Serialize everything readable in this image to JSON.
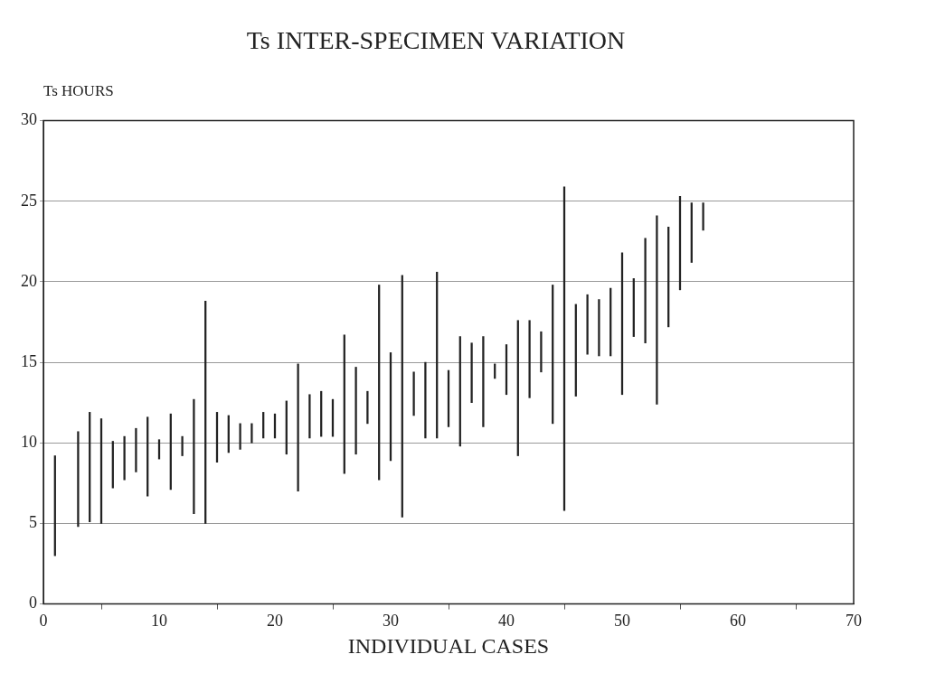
{
  "chart_data": {
    "type": "bar",
    "title": "Ts INTER-SPECIMEN VARIATION",
    "xlabel": "INDIVIDUAL CASES",
    "ylabel": "Ts HOURS",
    "x": [
      1,
      3,
      4,
      5,
      6,
      7,
      8,
      9,
      10,
      11,
      12,
      13,
      14,
      15,
      16,
      17,
      18,
      19,
      20,
      21,
      22,
      23,
      24,
      25,
      26,
      27,
      28,
      29,
      30,
      31,
      32,
      33,
      34,
      35,
      36,
      37,
      38,
      39,
      40,
      41,
      42,
      43,
      44,
      45,
      46,
      47,
      48,
      49,
      50,
      51,
      52,
      53,
      54,
      55,
      56,
      57
    ],
    "base": [
      3.0,
      4.8,
      5.1,
      5.0,
      7.2,
      7.7,
      8.2,
      6.7,
      9.0,
      7.1,
      9.2,
      5.6,
      5.0,
      8.8,
      9.4,
      9.6,
      10.0,
      10.3,
      10.3,
      9.3,
      7.0,
      10.3,
      10.4,
      10.4,
      8.1,
      9.3,
      11.2,
      7.7,
      8.9,
      5.4,
      11.7,
      10.3,
      10.3,
      11.0,
      9.8,
      12.5,
      11.0,
      14.0,
      13.0,
      9.2,
      12.8,
      14.4,
      11.2,
      5.8,
      12.9,
      15.5,
      15.4,
      15.4,
      13.0,
      16.6,
      16.2,
      12.4,
      17.2,
      19.5,
      21.2,
      23.2
    ],
    "values": [
      6.2,
      5.9,
      6.8,
      6.5,
      2.9,
      2.7,
      2.7,
      4.9,
      1.2,
      4.7,
      1.2,
      7.1,
      13.8,
      3.1,
      2.3,
      1.6,
      1.2,
      1.6,
      1.5,
      3.3,
      7.9,
      2.7,
      2.8,
      2.3,
      8.6,
      5.4,
      2.0,
      12.1,
      6.7,
      15.0,
      2.7,
      4.7,
      10.3,
      3.5,
      6.8,
      3.7,
      5.6,
      0.9,
      3.1,
      8.4,
      4.8,
      2.5,
      8.6,
      20.1,
      5.7,
      3.7,
      3.5,
      4.2,
      8.8,
      3.6,
      6.5,
      11.7,
      6.2,
      5.8,
      3.7,
      1.7
    ],
    "color": "#222222",
    "xlim": [
      0,
      70
    ],
    "xticks": [
      0,
      10,
      20,
      30,
      40,
      50,
      60,
      70
    ],
    "ylim": [
      0,
      30
    ],
    "yticks": [
      0,
      5,
      10,
      15,
      20,
      25,
      30
    ],
    "grid": "y",
    "legend": false
  }
}
